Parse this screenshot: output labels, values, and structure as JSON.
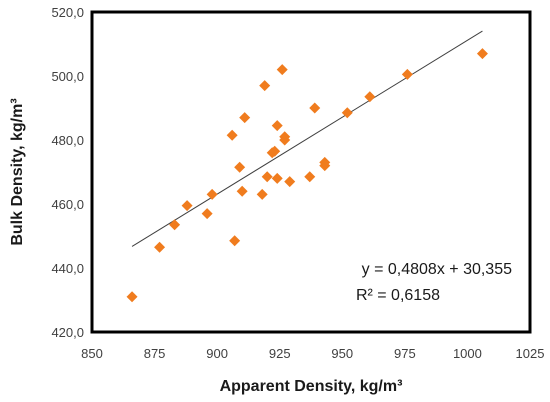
{
  "chart_data": {
    "type": "scatter",
    "xlabel": "Apparent Density, kg/m³",
    "ylabel": "Bulk Density, kg/m³",
    "xlim": [
      850,
      1025
    ],
    "ylim": [
      420,
      520
    ],
    "x_ticks": [
      "850",
      "875",
      "900",
      "925",
      "950",
      "975",
      "1000",
      "1025"
    ],
    "y_ticks": [
      "420,0",
      "440,0",
      "460,0",
      "480,0",
      "500,0",
      "520,0"
    ],
    "grid": false,
    "legend": "none",
    "marker_color": "#f07c1e",
    "trendline_color": "#404040",
    "trendline": {
      "slope": 0.4808,
      "intercept": 30.355,
      "x_range": [
        866,
        1006
      ]
    },
    "equation_label": "y = 0,4808x + 30,355",
    "r2_label": "R² = 0,6158",
    "points": [
      [
        866,
        431
      ],
      [
        877,
        446.5
      ],
      [
        883,
        453.5
      ],
      [
        888,
        459.5
      ],
      [
        896,
        457
      ],
      [
        898,
        463
      ],
      [
        906,
        481.5
      ],
      [
        907,
        448.5
      ],
      [
        909,
        471.5
      ],
      [
        910,
        464
      ],
      [
        911,
        487
      ],
      [
        918,
        463
      ],
      [
        919,
        497
      ],
      [
        920,
        468.5
      ],
      [
        922,
        476
      ],
      [
        923,
        476.5
      ],
      [
        924,
        484.5
      ],
      [
        924,
        468
      ],
      [
        926,
        502
      ],
      [
        927,
        480
      ],
      [
        927,
        481
      ],
      [
        929,
        467
      ],
      [
        937,
        468.5
      ],
      [
        939,
        490
      ],
      [
        943,
        472
      ],
      [
        943,
        473
      ],
      [
        952,
        488.5
      ],
      [
        961,
        493.5
      ],
      [
        976,
        500.5
      ],
      [
        1006,
        507
      ]
    ]
  }
}
